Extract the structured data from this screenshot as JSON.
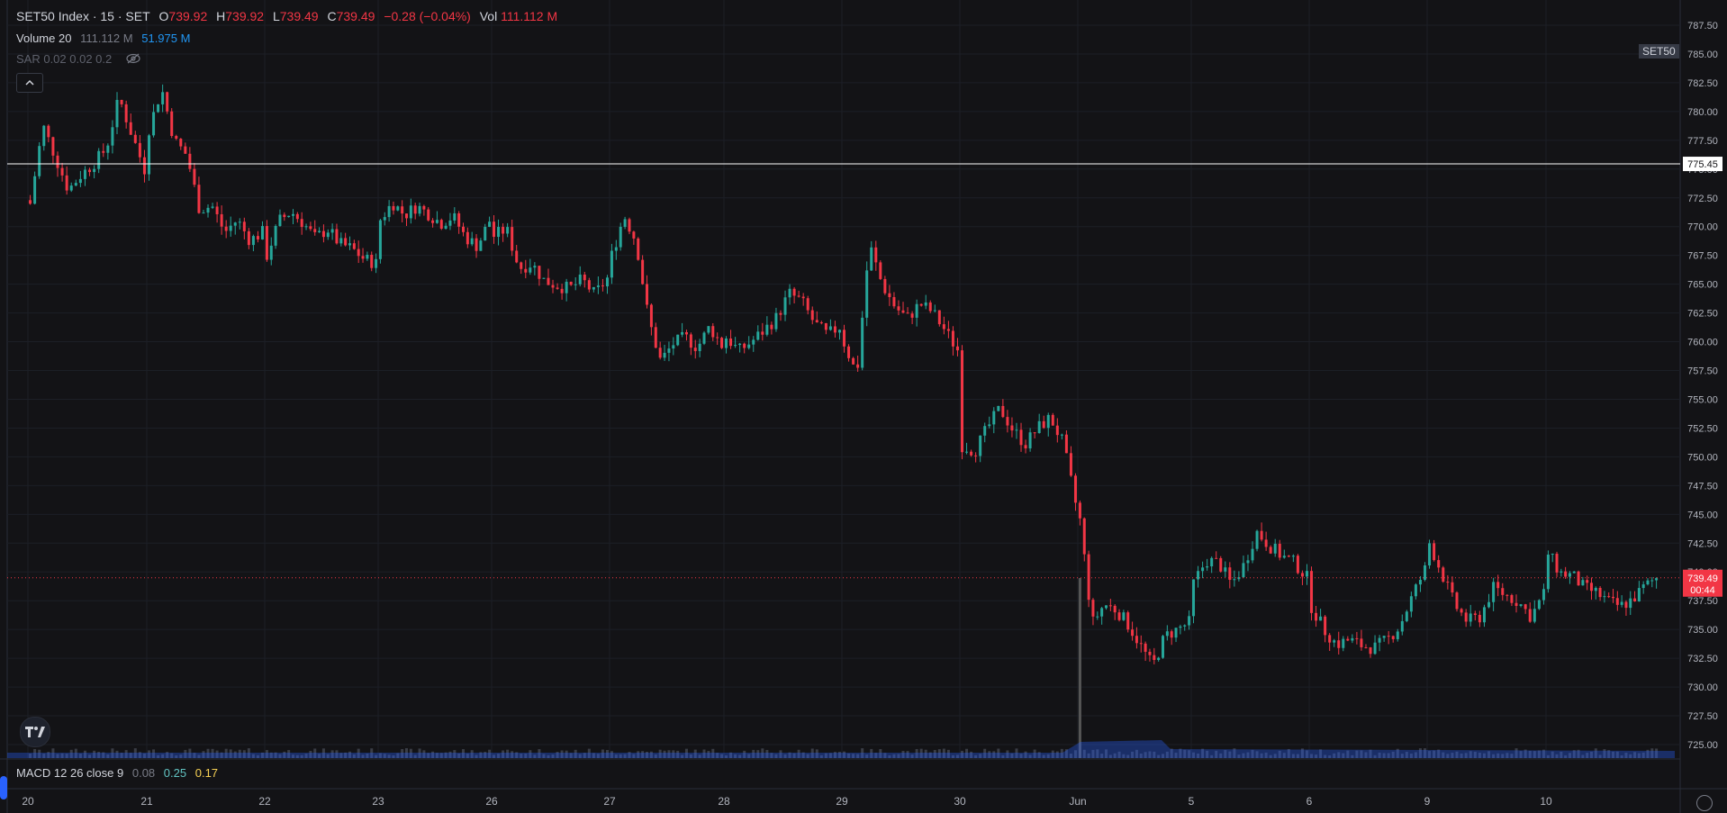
{
  "legend": {
    "symbol": "SET50 Index · 15 · SET",
    "open_label": "O",
    "open": "739.92",
    "high_label": "H",
    "high": "739.92",
    "low_label": "L",
    "low": "739.49",
    "close_label": "C",
    "close": "739.49",
    "change": "−0.28 (−0.04%)",
    "vol_label": "Vol",
    "vol": "111.112 M"
  },
  "volume_indicator": {
    "label": "Volume 20",
    "value1": "111.112 M",
    "value2": "51.975 M"
  },
  "sar_indicator": {
    "label": "SAR 0.02 0.02 0.2"
  },
  "macd_indicator": {
    "label": "MACD 12 26 close 9",
    "v1": "0.08",
    "v2": "0.25",
    "v3": "0.17"
  },
  "symbol_badge": "SET50",
  "hline_label": "775.45",
  "last_price_label": "739.49",
  "countdown_label": "00:44",
  "icons": [
    "eye-off-icon",
    "chevron-up-icon",
    "tradingview-logo-icon",
    "settings-icon"
  ],
  "colors": {
    "up": "#26a69a",
    "down": "#f23645",
    "volume": "#2962ff",
    "bg": "#131316"
  },
  "chart_data": {
    "type": "candlestick",
    "title": "SET50 Index · 15 · SET",
    "y_ticks": [
      "787.50",
      "785.00",
      "782.50",
      "780.00",
      "777.50",
      "775.00",
      "772.50",
      "770.00",
      "767.50",
      "765.00",
      "762.50",
      "760.00",
      "757.50",
      "755.00",
      "752.50",
      "750.00",
      "747.50",
      "745.00",
      "742.50",
      "740.00",
      "737.50",
      "735.00",
      "732.50",
      "730.00",
      "727.50",
      "725.00"
    ],
    "ylim": [
      724,
      789
    ],
    "x_ticks": [
      "20",
      "21",
      "22",
      "23",
      "26",
      "27",
      "28",
      "29",
      "30",
      "Jun",
      "5",
      "6",
      "9",
      "10"
    ],
    "horizontal_line": 775.45,
    "last_price": 739.49,
    "grid": true,
    "close_path": [
      {
        "session": "20",
        "closes": [
          772.0,
          778.8,
          776.0,
          773.2,
          774.5,
          775.5,
          776.8,
          781.2,
          778.0,
          775.0
        ]
      },
      {
        "session": "21",
        "closes": [
          778.5,
          782.0,
          777.5,
          776.2,
          771.5,
          771.8,
          769.5,
          770.6,
          768.8,
          769.5
        ]
      },
      {
        "session": "22",
        "closes": [
          767.5,
          770.5,
          771.3,
          770.3,
          769.0,
          769.8,
          768.5,
          768.1,
          767.2,
          766.8
        ]
      },
      {
        "session": "23",
        "closes": [
          770.6,
          772.1,
          771.0,
          771.8,
          771.1,
          770.3,
          770.9,
          769.1,
          768.3,
          770.5
        ]
      },
      {
        "session": "26",
        "closes": [
          769.2,
          769.8,
          766.4,
          766.8,
          765.3,
          764.9,
          764.6,
          765.4,
          764.1,
          765.5
        ]
      },
      {
        "session": "27",
        "closes": [
          767.5,
          771.0,
          768.7,
          762.0,
          758.3,
          759.8,
          760.4,
          759.5,
          761.3,
          759.7
        ]
      },
      {
        "session": "28",
        "closes": [
          760.4,
          759.2,
          760.0,
          761.0,
          762.1,
          764.2,
          763.5,
          761.6,
          760.6,
          761.3
        ]
      },
      {
        "session": "29",
        "closes": [
          759.9,
          757.1,
          768.5,
          765.0,
          763.1,
          762.0,
          763.3,
          762.6,
          761.0,
          759.3
        ]
      },
      {
        "session": "30",
        "closes": [
          751.0,
          750.5,
          752.5,
          754.2,
          752.4,
          751.1,
          752.5,
          753.4,
          751.2,
          746.0
        ]
      },
      {
        "session": "Jun",
        "closes": [
          744.5,
          735.5,
          737.2,
          736.7,
          735.4,
          733.6,
          731.8,
          734.4,
          735.0,
          735.6
        ]
      },
      {
        "session": "5",
        "closes": [
          739.0,
          741.0,
          740.8,
          738.9,
          740.6,
          743.5,
          742.3,
          741.4,
          740.8,
          739.5
        ]
      },
      {
        "session": "6",
        "closes": [
          737.0,
          735.0,
          733.7,
          734.1,
          733.6,
          733.4,
          734.1,
          735.3,
          737.9,
          740.2
        ]
      },
      {
        "session": "9",
        "closes": [
          742.5,
          739.8,
          737.1,
          735.7,
          736.1,
          738.6,
          738.0,
          737.4,
          736.1,
          738.1
        ]
      },
      {
        "session": "10",
        "closes": [
          741.6,
          739.9,
          739.7,
          738.6,
          738.2,
          737.4,
          737.0,
          737.6,
          738.7,
          739.49
        ]
      }
    ],
    "volume": {
      "typical": "low",
      "spike_session": "Jun"
    },
    "macd": {
      "fast": 12,
      "slow": 26,
      "source": "close",
      "signal": 9
    }
  }
}
